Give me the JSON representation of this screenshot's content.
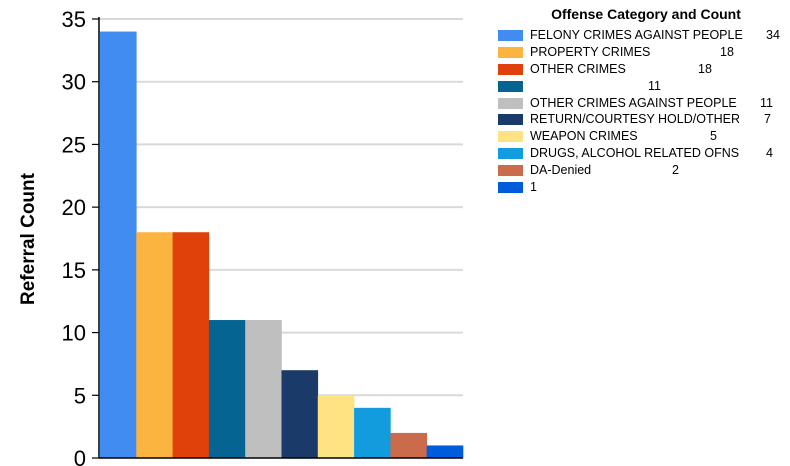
{
  "chart_data": {
    "type": "bar",
    "title": "",
    "xlabel": "",
    "ylabel": "Referral Count",
    "ylim": [
      0,
      35
    ],
    "yticks": [
      0,
      5,
      10,
      15,
      20,
      25,
      30,
      35
    ],
    "grid": true,
    "legend_title": "Offense Category and Count",
    "legend_position": "right",
    "categories": [
      "FELONY CRIMES AGAINST PEOPLE",
      "PROPERTY CRIMES",
      "OTHER CRIMES",
      "",
      "OTHER CRIMES AGAINST PEOPLE",
      "RETURN/COURTESY HOLD/OTHER",
      "WEAPON CRIMES",
      "DRUGS, ALCOHOL RELATED OFNS",
      "DA-Denied",
      ""
    ],
    "values": [
      34,
      18,
      18,
      11,
      11,
      7,
      5,
      4,
      2,
      1
    ],
    "colors": [
      "#418cf0",
      "#fcb441",
      "#e0400a",
      "#056492",
      "#bfbfbf",
      "#1a3b69",
      "#ffe382",
      "#129cdd",
      "#ca6b4b",
      "#005cdb"
    ]
  }
}
